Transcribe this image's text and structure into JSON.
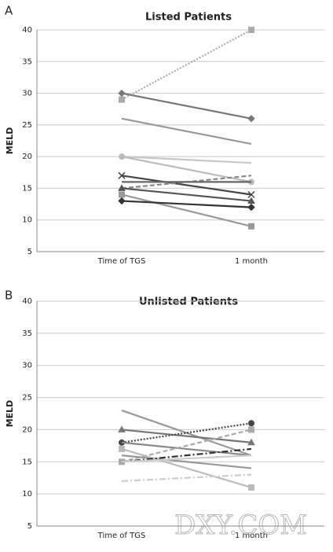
{
  "chart_data": [
    {
      "type": "line",
      "panel_label": "A",
      "title": "Listed Patients",
      "y_label": "MELD",
      "categories": [
        "Time of TGS",
        "1 month"
      ],
      "ylim": [
        5,
        40
      ],
      "yticks": [
        5,
        10,
        15,
        20,
        25,
        30,
        35,
        40
      ],
      "grid": true,
      "series": [
        {
          "color": "#aaaaaa",
          "dash": "dot",
          "marker": "square",
          "values": [
            29,
            40
          ]
        },
        {
          "color": "#777777",
          "dash": "solid",
          "marker": "diamond",
          "values": [
            30,
            26
          ]
        },
        {
          "color": "#999999",
          "dash": "solid",
          "marker": "none",
          "values": [
            26,
            22
          ]
        },
        {
          "color": "#c8c8c8",
          "dash": "solid",
          "marker": "none",
          "values": [
            20,
            19
          ]
        },
        {
          "color": "#bbbbbb",
          "dash": "solid",
          "marker": "circle",
          "values": [
            20,
            16
          ]
        },
        {
          "color": "#444444",
          "dash": "solid",
          "marker": "x",
          "values": [
            17,
            14
          ]
        },
        {
          "color": "#888888",
          "dash": "dash",
          "marker": "none",
          "values": [
            15,
            17
          ]
        },
        {
          "color": "#666666",
          "dash": "solid",
          "marker": "none",
          "values": [
            16,
            16
          ]
        },
        {
          "color": "#555555",
          "dash": "solid",
          "marker": "triangle",
          "values": [
            15,
            13
          ]
        },
        {
          "color": "#999999",
          "dash": "solid",
          "marker": "square",
          "values": [
            14,
            9
          ]
        },
        {
          "color": "#333333",
          "dash": "solid",
          "marker": "diamond",
          "values": [
            13,
            12
          ]
        }
      ]
    },
    {
      "type": "line",
      "panel_label": "B",
      "title": "Unlisted Patients",
      "y_label": "MELD",
      "categories": [
        "Time of TGS",
        "1 month"
      ],
      "ylim": [
        5,
        40
      ],
      "yticks": [
        5,
        10,
        15,
        20,
        25,
        30,
        35,
        40
      ],
      "grid": true,
      "series": [
        {
          "color": "#999999",
          "dash": "solid",
          "marker": "none",
          "values": [
            23,
            16
          ]
        },
        {
          "color": "#777777",
          "dash": "solid",
          "marker": "triangle",
          "values": [
            20,
            18
          ]
        },
        {
          "color": "#444444",
          "dash": "dot",
          "marker": "circle",
          "values": [
            18,
            21
          ]
        },
        {
          "color": "#888888",
          "dash": "solid",
          "marker": "none",
          "values": [
            18,
            16
          ]
        },
        {
          "color": "#aaaaaa",
          "dash": "dash",
          "marker": "square",
          "values": [
            15,
            20
          ]
        },
        {
          "color": "#999999",
          "dash": "solid",
          "marker": "none",
          "values": [
            16,
            14
          ]
        },
        {
          "color": "#bbbbbb",
          "dash": "solid",
          "marker": "square",
          "values": [
            17,
            11
          ]
        },
        {
          "color": "#333333",
          "dash": "dashdot",
          "marker": "none",
          "values": [
            15,
            17
          ]
        },
        {
          "color": "#cccccc",
          "dash": "solid",
          "marker": "none",
          "values": [
            15,
            16
          ]
        },
        {
          "color": "#cccccc",
          "dash": "dashdot",
          "marker": "none",
          "values": [
            12,
            13
          ]
        }
      ]
    }
  ],
  "watermark": "DXY.COM"
}
